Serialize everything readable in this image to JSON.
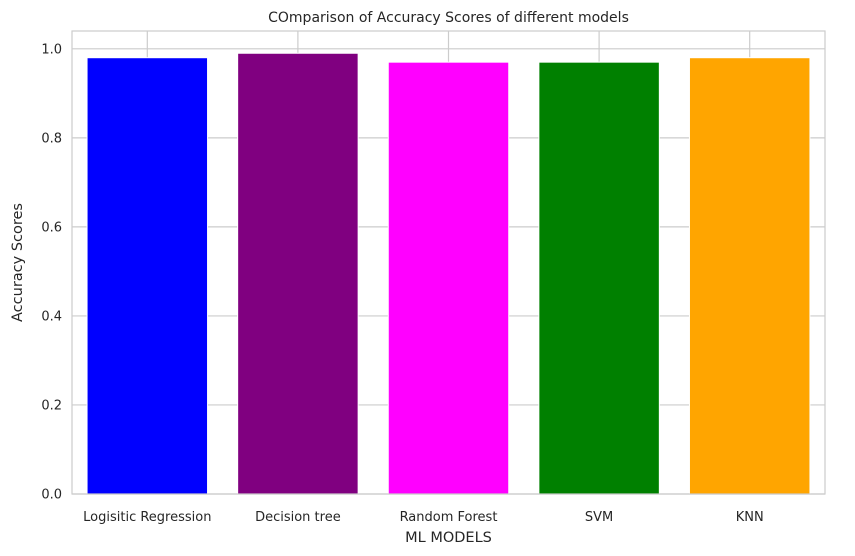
{
  "chart_data": {
    "type": "bar",
    "title": "COmparison of Accuracy Scores of different models",
    "xlabel": "ML MODELS",
    "ylabel": "Accuracy Scores",
    "categories": [
      "Logisitic Regression",
      "Decision tree",
      "Random Forest",
      "SVM",
      "KNN"
    ],
    "values": [
      0.98,
      0.99,
      0.97,
      0.97,
      0.98
    ],
    "colors": [
      "#0000ff",
      "#800080",
      "#ff00ff",
      "#008000",
      "#ffa500"
    ],
    "ylim": [
      0,
      1.04
    ],
    "yticks": [
      "0.0",
      "0.2",
      "0.4",
      "0.6",
      "0.8",
      "1.0"
    ],
    "grid": true,
    "legend": "none"
  }
}
